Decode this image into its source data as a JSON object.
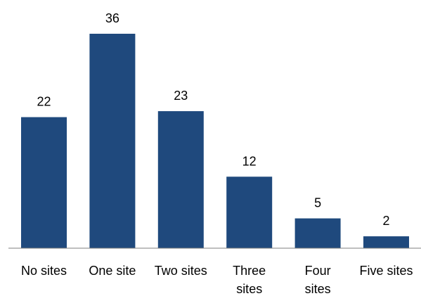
{
  "chart_data": {
    "type": "bar",
    "title": "",
    "xlabel": "",
    "ylabel": "",
    "categories": [
      [
        "No sites"
      ],
      [
        "One site"
      ],
      [
        "Two sites"
      ],
      [
        "Three",
        "sites"
      ],
      [
        "Four",
        "sites"
      ],
      [
        "Five sites"
      ]
    ],
    "values": [
      22,
      36,
      23,
      12,
      5,
      2
    ],
    "ylim": [
      0,
      36
    ],
    "grid": false,
    "legend": "none",
    "colors": {
      "bar": "#1f497d"
    }
  }
}
